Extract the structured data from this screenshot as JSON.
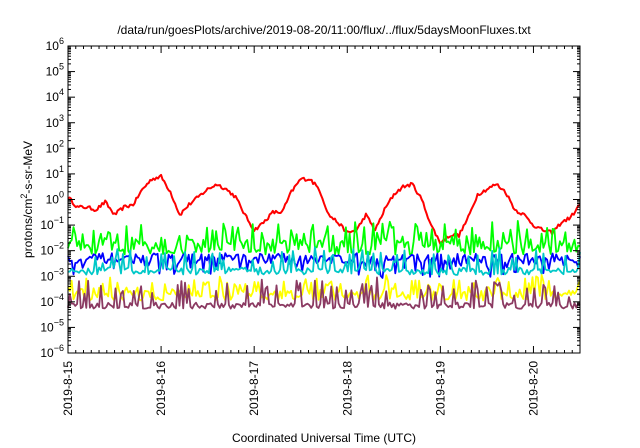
{
  "chart_data": {
    "type": "line",
    "title": "/data/run/goesPlots/archive/2019-08-20/11:00/flux/../flux/5daysMoonFluxes.txt",
    "xlabel": "Coordinated Universal Time (UTC)",
    "ylabel_base": "protons/cm",
    "ylabel_sup": "2",
    "ylabel_rest": "-s-sr-MeV",
    "y_scale": "log",
    "ylim_exponents": [
      -6,
      6
    ],
    "y_tick_exponents": [
      -6,
      -5,
      -4,
      -3,
      -2,
      -1,
      0,
      1,
      2,
      3,
      4,
      5,
      6
    ],
    "xlim_days": [
      0,
      5.5
    ],
    "x_ticks": [
      "2019-8-15",
      "2019-8-16",
      "2019-8-17",
      "2019-8-18",
      "2019-8-19",
      "2019-8-20"
    ],
    "x_tick_rotation": "vertical",
    "grid": false,
    "legend": "none",
    "series": [
      {
        "color": "#ff0000",
        "anchors_x": [
          0,
          0.1,
          0.2,
          0.3,
          0.4,
          0.5,
          0.6,
          0.7,
          0.8,
          0.9,
          1.0,
          1.1,
          1.2,
          1.3,
          1.4,
          1.5,
          1.6,
          1.7,
          1.8,
          1.9,
          2.0,
          2.1,
          2.2,
          2.3,
          2.4,
          2.5,
          2.6,
          2.7,
          2.8,
          2.9,
          3.0,
          3.1,
          3.2,
          3.3,
          3.4,
          3.5,
          3.6,
          3.7,
          3.8,
          3.9,
          4.0,
          4.1,
          4.2,
          4.3,
          4.4,
          4.5,
          4.6,
          4.7,
          4.8,
          4.9,
          5.0,
          5.1,
          5.2,
          5.3,
          5.4,
          5.5
        ],
        "anchors_y_exp": [
          0.1,
          -0.3,
          -0.3,
          -0.4,
          -0.1,
          -0.6,
          -0.3,
          -0.2,
          0.4,
          0.8,
          0.9,
          0.3,
          -0.6,
          -0.2,
          0.1,
          0.4,
          0.6,
          0.4,
          0.1,
          -0.6,
          -1.2,
          -0.9,
          -0.5,
          -0.5,
          0.3,
          0.8,
          0.8,
          0.4,
          -0.6,
          -0.9,
          -1.3,
          -1.2,
          -0.6,
          -1.2,
          -0.4,
          0.2,
          0.5,
          0.6,
          0.0,
          -1.0,
          -1.7,
          -1.4,
          -1.4,
          -0.7,
          0.2,
          0.4,
          0.6,
          0.3,
          -0.4,
          -0.6,
          -1.0,
          -1.2,
          -1.3,
          -0.9,
          -0.7,
          -0.2
        ]
      },
      {
        "color": "#00ff00",
        "mean_exp": -1.85,
        "jitter_exp": 0.3,
        "spike_exp": 0.8,
        "spike_rate": 0.28
      },
      {
        "color": "#0000ff",
        "mean_exp": -2.3,
        "jitter_exp": 0.2,
        "dip_exp": 0.6,
        "dip_rate": 0.24
      },
      {
        "color": "#00c8c8",
        "mean_exp": -2.8,
        "jitter_exp": 0.15,
        "spike_exp": 0.9,
        "spike_rate": 0.22
      },
      {
        "color": "#ffff00",
        "mean_exp": -3.75,
        "jitter_exp": 0.2,
        "spike_exp": 0.65,
        "spike_rate": 0.3
      },
      {
        "color": "#8b3a62",
        "mean_exp": -4.15,
        "jitter_exp": 0.12,
        "spike_exp": 1.0,
        "spike_rate": 0.24
      }
    ]
  }
}
